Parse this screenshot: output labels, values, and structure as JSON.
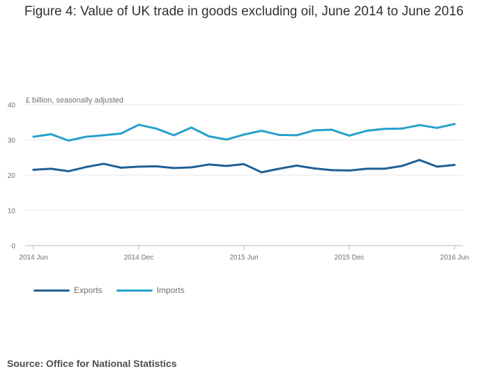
{
  "title": "Figure 4: Value of UK trade in goods excluding oil, June 2014 to June 2016",
  "source": "Source: Office for National Statistics",
  "colors": {
    "exports": "#206095",
    "imports": "#27a0cc",
    "grid": "#e6e6e6",
    "axis": "#bbbbbb",
    "text": "#707071"
  },
  "chart_data": {
    "type": "line",
    "title": "Figure 4: Value of UK trade in goods excluding oil, June 2014 to June 2016",
    "ylabel": "£ billion, seasonally adjusted",
    "xlabel": "",
    "ylim": [
      0,
      40
    ],
    "yticks": [
      0,
      10,
      20,
      30,
      40
    ],
    "x": [
      "2014 Jun",
      "2014 Jul",
      "2014 Aug",
      "2014 Sep",
      "2014 Oct",
      "2014 Nov",
      "2014 Dec",
      "2015 Jan",
      "2015 Feb",
      "2015 Mar",
      "2015 Apr",
      "2015 May",
      "2015 Jun",
      "2015 Jul",
      "2015 Aug",
      "2015 Sep",
      "2015 Oct",
      "2015 Nov",
      "2015 Dec",
      "2016 Jan",
      "2016 Feb",
      "2016 Mar",
      "2016 Apr",
      "2016 May",
      "2016 Jun"
    ],
    "xtick_labels": [
      {
        "index": 0,
        "label": "2014 Jun"
      },
      {
        "index": 6,
        "label": "2014 Dec"
      },
      {
        "index": 12,
        "label": "2015 Jun"
      },
      {
        "index": 18,
        "label": "2015 Dec"
      },
      {
        "index": 24,
        "label": "2016 Jun"
      }
    ],
    "series": [
      {
        "name": "Exports",
        "color": "#206095",
        "values": [
          21.5,
          21.8,
          21.1,
          22.3,
          23.2,
          22.1,
          22.4,
          22.5,
          22.0,
          22.2,
          23.0,
          22.6,
          23.1,
          20.8,
          21.8,
          22.7,
          21.9,
          21.4,
          21.3,
          21.8,
          21.8,
          22.6,
          24.3,
          22.4,
          22.9
        ]
      },
      {
        "name": "Imports",
        "color": "#27a0cc",
        "values": [
          30.9,
          31.6,
          29.8,
          30.9,
          31.3,
          31.8,
          34.3,
          33.2,
          31.3,
          33.5,
          31.0,
          30.1,
          31.5,
          32.6,
          31.4,
          31.3,
          32.7,
          32.9,
          31.2,
          32.6,
          33.1,
          33.2,
          34.2,
          33.4,
          34.5
        ]
      }
    ]
  }
}
